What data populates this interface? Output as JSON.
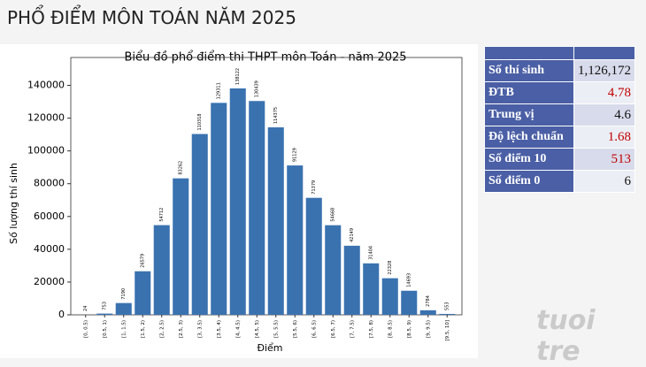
{
  "title": "PHỔ ĐIỂM MÔN TOÁN NĂM 2025",
  "chart_data": {
    "type": "bar",
    "title": "Biểu đồ phổ điểm thi THPT môn Toán - năm 2025",
    "x_label": "Điểm",
    "y_label": "Số lượng thí sinh",
    "categories": [
      "[0, 0.5)",
      "[0.5, 1)",
      "[1, 1.5)",
      "[1.5, 2)",
      "[2, 2.5)",
      "[2.5, 3)",
      "[3, 3.5)",
      "[3.5, 4)",
      "[4, 4.5)",
      "[4.5, 5)",
      "[5, 5.5)",
      "[5.5, 6)",
      "[6, 6.5)",
      "[6.5, 7)",
      "[7, 7.5)",
      "[7.5, 8)",
      "[8, 8.5)",
      "[8.5, 9)",
      "[9, 9.5)",
      "[9.5, 10]"
    ],
    "values": [
      24,
      753,
      7190,
      26579,
      54712,
      83262,
      110318,
      129311,
      138122,
      130439,
      114375,
      91129,
      71379,
      54668,
      42149,
      31404,
      22328,
      14693,
      2784,
      553
    ],
    "color": "#3a72b0",
    "ylim": [
      0,
      157000
    ],
    "yticks": [
      0,
      20000,
      40000,
      60000,
      80000,
      100000,
      120000,
      140000
    ]
  },
  "table": {
    "rows": [
      [
        "Số thí sinh",
        "1,126,172"
      ],
      [
        "ĐTB",
        "4.78"
      ],
      [
        "Trung vị",
        "4.6"
      ],
      [
        "Độ lệch chuẩn",
        "1.68"
      ],
      [
        "Số điểm 10",
        "513"
      ],
      [
        "Số điểm 0",
        "6"
      ]
    ],
    "highlight_color": "#c00000",
    "highlight_rows": [
      1,
      3,
      4
    ]
  },
  "watermark": "tuoi tre"
}
